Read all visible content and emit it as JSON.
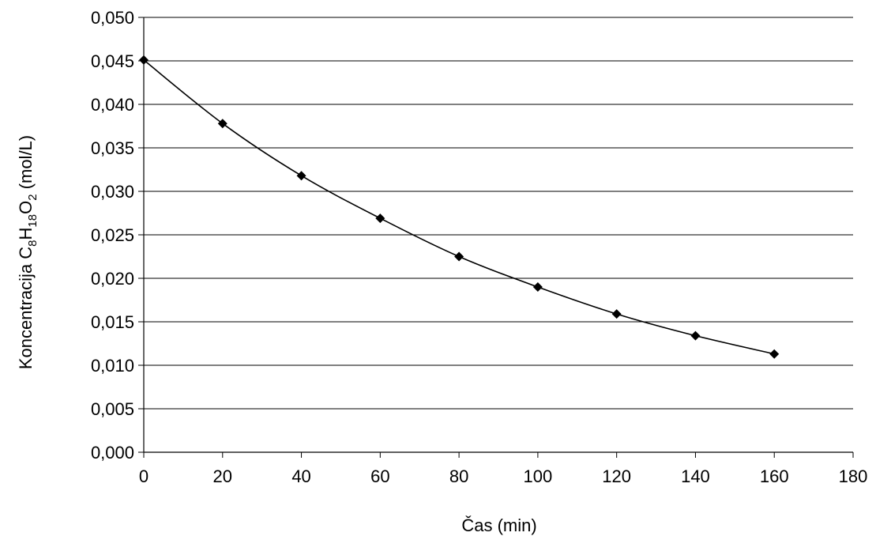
{
  "chart_data": {
    "type": "line",
    "title": "",
    "xlabel": "Čas (min)",
    "ylabel_parts": {
      "prefix": "Koncentracija C",
      "sub1": "8",
      "h": "H",
      "sub2": "18",
      "o": "O",
      "sub3": "2",
      "suffix": " (mol/L)"
    },
    "xlim": [
      0,
      180
    ],
    "ylim": [
      0,
      0.05
    ],
    "x_ticks": [
      "0",
      "20",
      "40",
      "60",
      "80",
      "100",
      "120",
      "140",
      "160",
      "180"
    ],
    "y_ticks": [
      "0,000",
      "0,005",
      "0,010",
      "0,015",
      "0,020",
      "0,025",
      "0,030",
      "0,035",
      "0,040",
      "0,045",
      "0,050"
    ],
    "grid": "horizontal",
    "legend": "none",
    "series": [
      {
        "marker": "diamond",
        "color": "#000000",
        "x": [
          0,
          20,
          40,
          60,
          80,
          100,
          120,
          140,
          160
        ],
        "y": [
          0.0451,
          0.0378,
          0.0318,
          0.0269,
          0.0225,
          0.019,
          0.0159,
          0.0134,
          0.0113
        ]
      }
    ]
  }
}
